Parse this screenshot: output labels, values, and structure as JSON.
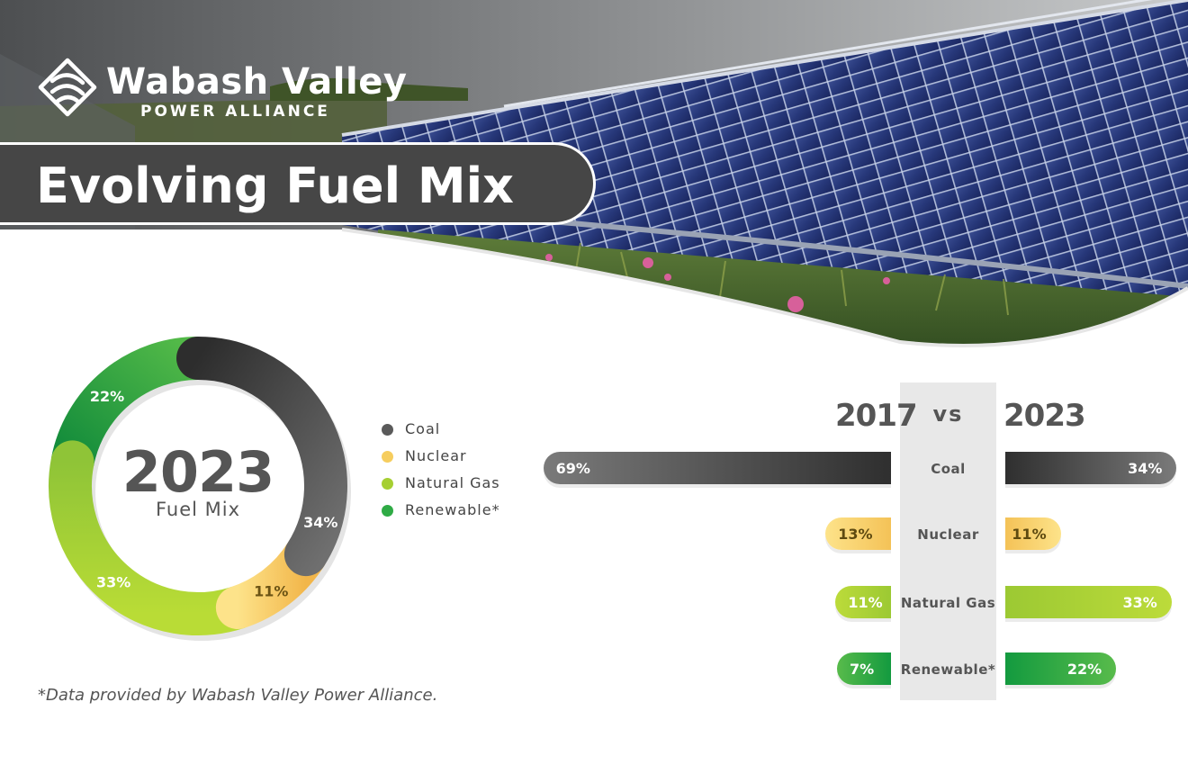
{
  "brand": {
    "name": "Wabash Valley",
    "subtitle": "POWER ALLIANCE"
  },
  "title": "Evolving Fuel Mix",
  "colors": {
    "coal": "#5a5a5a",
    "nuclear": "#f6cd5e",
    "natural_gas": "#a6cf32",
    "renewable": "#2fab45",
    "banner": "#464646"
  },
  "chart_data": [
    {
      "type": "pie",
      "variant": "donut",
      "center_title": "2023",
      "center_subtitle": "Fuel Mix",
      "categories": [
        "Coal",
        "Nuclear",
        "Natural Gas",
        "Renewable*"
      ],
      "values": [
        34,
        11,
        33,
        22
      ],
      "data_labels": [
        "34%",
        "11%",
        "33%",
        "22%"
      ],
      "legend": [
        "Coal",
        "Nuclear",
        "Natural Gas",
        "Renewable*"
      ],
      "legend_placement": "right"
    },
    {
      "type": "bar",
      "orientation": "horizontal",
      "layout": "diverging",
      "header_left": "2017",
      "header_center": "vs",
      "header_right": "2023",
      "categories": [
        "Coal",
        "Nuclear",
        "Natural Gas",
        "Renewable*"
      ],
      "series": [
        {
          "name": "2017",
          "values": [
            69,
            13,
            11,
            7
          ],
          "labels": [
            "69%",
            "13%",
            "11%",
            "7%"
          ]
        },
        {
          "name": "2023",
          "values": [
            34,
            11,
            33,
            22
          ],
          "labels": [
            "34%",
            "11%",
            "33%",
            "22%"
          ]
        }
      ]
    }
  ],
  "footnote": "*Data provided by Wabash Valley Power Alliance."
}
